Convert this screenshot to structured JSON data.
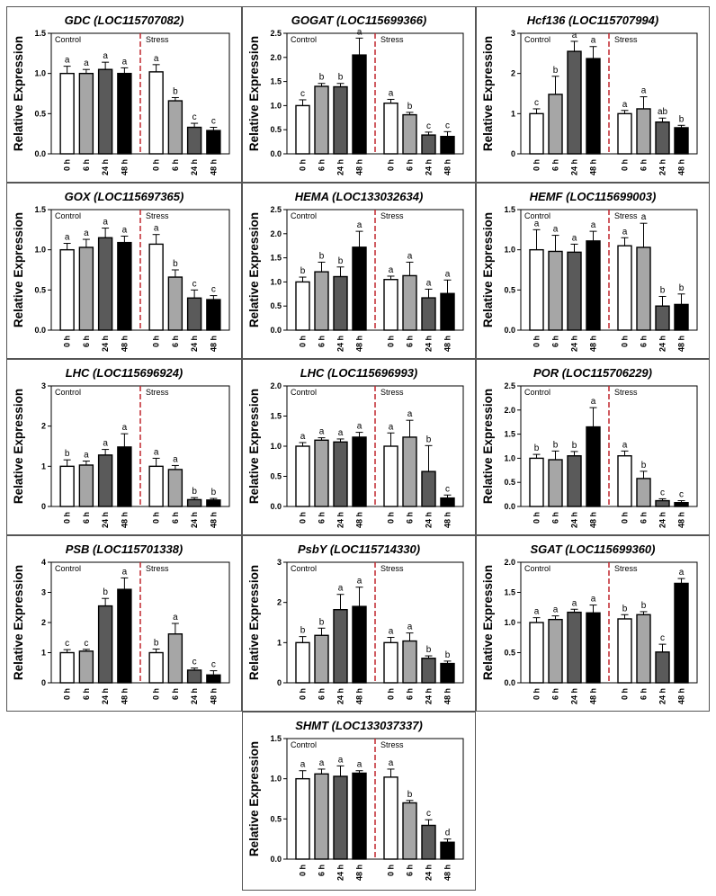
{
  "figure": {
    "ylabel": "Relative Expression",
    "categories": [
      "0 h",
      "6 h",
      "24 h",
      "48 h"
    ],
    "control_label": "Control",
    "stress_label": "Stress",
    "bar_fills": [
      "#ffffff",
      "#a6a6a6",
      "#5a5a5a",
      "#000000"
    ],
    "divider_color": "#c0272d"
  },
  "chart_data": [
    {
      "type": "bar",
      "title": "GDC (LOC115707082)",
      "ylim": [
        0,
        1.5
      ],
      "yticks": [
        "0.0",
        "0.5",
        "1.0",
        "1.5"
      ],
      "series": [
        {
          "name": "Control",
          "values": [
            1.0,
            1.0,
            1.05,
            1.0
          ],
          "errors": [
            0.09,
            0.05,
            0.09,
            0.07
          ],
          "letters": [
            "a",
            "a",
            "a",
            "a"
          ]
        },
        {
          "name": "Stress",
          "values": [
            1.02,
            0.66,
            0.33,
            0.29
          ],
          "errors": [
            0.09,
            0.04,
            0.05,
            0.04
          ],
          "letters": [
            "a",
            "b",
            "c",
            "c"
          ]
        }
      ]
    },
    {
      "type": "bar",
      "title": "GOGAT (LOC115699366)",
      "ylim": [
        0,
        2.5
      ],
      "yticks": [
        "0.0",
        "0.5",
        "1.0",
        "1.5",
        "2.0",
        "2.5"
      ],
      "series": [
        {
          "name": "Control",
          "values": [
            1.0,
            1.4,
            1.39,
            2.05
          ],
          "errors": [
            0.12,
            0.06,
            0.07,
            0.35
          ],
          "letters": [
            "c",
            "b",
            "b",
            "a"
          ]
        },
        {
          "name": "Stress",
          "values": [
            1.05,
            0.81,
            0.39,
            0.36
          ],
          "errors": [
            0.08,
            0.05,
            0.06,
            0.1
          ],
          "letters": [
            "a",
            "b",
            "c",
            "c"
          ]
        }
      ]
    },
    {
      "type": "bar",
      "title": "Hcf136 (LOC115707994)",
      "ylim": [
        0,
        3
      ],
      "yticks": [
        "0",
        "1",
        "2",
        "3"
      ],
      "series": [
        {
          "name": "Control",
          "values": [
            1.0,
            1.48,
            2.55,
            2.37
          ],
          "errors": [
            0.12,
            0.45,
            0.25,
            0.3
          ],
          "letters": [
            "c",
            "b",
            "a",
            "a"
          ]
        },
        {
          "name": "Stress",
          "values": [
            1.0,
            1.12,
            0.79,
            0.65
          ],
          "errors": [
            0.08,
            0.3,
            0.1,
            0.06
          ],
          "letters": [
            "a",
            "a",
            "ab",
            "b"
          ]
        }
      ]
    },
    {
      "type": "bar",
      "title": "GOX (LOC115697365)",
      "ylim": [
        0,
        1.5
      ],
      "yticks": [
        "0.0",
        "0.5",
        "1.0",
        "1.5"
      ],
      "series": [
        {
          "name": "Control",
          "values": [
            1.0,
            1.03,
            1.15,
            1.09
          ],
          "errors": [
            0.08,
            0.1,
            0.12,
            0.08
          ],
          "letters": [
            "a",
            "a",
            "a",
            "a"
          ]
        },
        {
          "name": "Stress",
          "values": [
            1.07,
            0.66,
            0.4,
            0.38
          ],
          "errors": [
            0.12,
            0.09,
            0.1,
            0.05
          ],
          "letters": [
            "a",
            "b",
            "c",
            "c"
          ]
        }
      ]
    },
    {
      "type": "bar",
      "title": "HEMA (LOC133032634)",
      "ylim": [
        0,
        2.5
      ],
      "yticks": [
        "0.0",
        "0.5",
        "1.0",
        "1.5",
        "2.0",
        "2.5"
      ],
      "series": [
        {
          "name": "Control",
          "values": [
            1.0,
            1.21,
            1.11,
            1.72
          ],
          "errors": [
            0.1,
            0.2,
            0.2,
            0.33
          ],
          "letters": [
            "b",
            "b",
            "b",
            "a"
          ]
        },
        {
          "name": "Stress",
          "values": [
            1.05,
            1.13,
            0.67,
            0.76
          ],
          "errors": [
            0.07,
            0.28,
            0.18,
            0.28
          ],
          "letters": [
            "a",
            "a",
            "a",
            "a"
          ]
        }
      ]
    },
    {
      "type": "bar",
      "title": "HEMF (LOC115699003)",
      "ylim": [
        0,
        1.5
      ],
      "yticks": [
        "0.0",
        "0.5",
        "1.0",
        "1.5"
      ],
      "series": [
        {
          "name": "Control",
          "values": [
            1.0,
            0.98,
            0.97,
            1.11
          ],
          "errors": [
            0.25,
            0.2,
            0.1,
            0.12
          ],
          "letters": [
            "a",
            "a",
            "a",
            "a"
          ]
        },
        {
          "name": "Stress",
          "values": [
            1.05,
            1.03,
            0.3,
            0.32
          ],
          "errors": [
            0.1,
            0.3,
            0.12,
            0.13
          ],
          "letters": [
            "a",
            "a",
            "b",
            "b"
          ]
        }
      ]
    },
    {
      "type": "bar",
      "title": "LHC (LOC115696924)",
      "ylim": [
        0,
        3
      ],
      "yticks": [
        "0",
        "1",
        "2",
        "3"
      ],
      "series": [
        {
          "name": "Control",
          "values": [
            1.0,
            1.03,
            1.28,
            1.48
          ],
          "errors": [
            0.16,
            0.1,
            0.14,
            0.33
          ],
          "letters": [
            "b",
            "a",
            "a",
            "a"
          ]
        },
        {
          "name": "Stress",
          "values": [
            1.0,
            0.92,
            0.17,
            0.16
          ],
          "errors": [
            0.2,
            0.1,
            0.05,
            0.04
          ],
          "letters": [
            "a",
            "a",
            "b",
            "b"
          ]
        }
      ]
    },
    {
      "type": "bar",
      "title": "LHC (LOC115696993)",
      "ylim": [
        0,
        2
      ],
      "yticks": [
        "0.0",
        "0.5",
        "1.0",
        "1.5",
        "2.0"
      ],
      "series": [
        {
          "name": "Control",
          "values": [
            1.0,
            1.1,
            1.07,
            1.15
          ],
          "errors": [
            0.06,
            0.04,
            0.05,
            0.08
          ],
          "letters": [
            "a",
            "a",
            "a",
            "a"
          ]
        },
        {
          "name": "Stress",
          "values": [
            1.0,
            1.15,
            0.58,
            0.14
          ],
          "errors": [
            0.22,
            0.28,
            0.43,
            0.05
          ],
          "letters": [
            "a",
            "a",
            "b",
            "c"
          ]
        }
      ]
    },
    {
      "type": "bar",
      "title": "POR (LOC115706229)",
      "ylim": [
        0,
        2.5
      ],
      "yticks": [
        "0.0",
        "0.5",
        "1.0",
        "1.5",
        "2.0",
        "2.5"
      ],
      "series": [
        {
          "name": "Control",
          "values": [
            1.0,
            0.97,
            1.05,
            1.65
          ],
          "errors": [
            0.08,
            0.18,
            0.09,
            0.4
          ],
          "letters": [
            "b",
            "b",
            "b",
            "a"
          ]
        },
        {
          "name": "Stress",
          "values": [
            1.05,
            0.58,
            0.12,
            0.08
          ],
          "errors": [
            0.1,
            0.15,
            0.04,
            0.04
          ],
          "letters": [
            "a",
            "b",
            "c",
            "c"
          ]
        }
      ]
    },
    {
      "type": "bar",
      "title": "PSB (LOC115701338)",
      "ylim": [
        0,
        4
      ],
      "yticks": [
        "0",
        "1",
        "2",
        "3",
        "4"
      ],
      "series": [
        {
          "name": "Control",
          "values": [
            1.0,
            1.05,
            2.55,
            3.1
          ],
          "errors": [
            0.1,
            0.06,
            0.25,
            0.38
          ],
          "letters": [
            "c",
            "c",
            "b",
            "a"
          ]
        },
        {
          "name": "Stress",
          "values": [
            1.0,
            1.62,
            0.42,
            0.26
          ],
          "errors": [
            0.12,
            0.35,
            0.07,
            0.14
          ],
          "letters": [
            "b",
            "a",
            "c",
            "c"
          ]
        }
      ]
    },
    {
      "type": "bar",
      "title": "PsbY (LOC115714330)",
      "ylim": [
        0,
        3
      ],
      "yticks": [
        "0",
        "1",
        "2",
        "3"
      ],
      "series": [
        {
          "name": "Control",
          "values": [
            1.0,
            1.18,
            1.82,
            1.9
          ],
          "errors": [
            0.15,
            0.18,
            0.38,
            0.48
          ],
          "letters": [
            "b",
            "b",
            "a",
            "a"
          ]
        },
        {
          "name": "Stress",
          "values": [
            1.0,
            1.04,
            0.61,
            0.48
          ],
          "errors": [
            0.13,
            0.2,
            0.06,
            0.06
          ],
          "letters": [
            "a",
            "a",
            "b",
            "b"
          ]
        }
      ]
    },
    {
      "type": "bar",
      "title": "SGAT (LOC115699360)",
      "ylim": [
        0,
        2
      ],
      "yticks": [
        "0.0",
        "0.5",
        "1.0",
        "1.5",
        "2.0"
      ],
      "series": [
        {
          "name": "Control",
          "values": [
            1.0,
            1.05,
            1.17,
            1.16
          ],
          "errors": [
            0.08,
            0.06,
            0.05,
            0.13
          ],
          "letters": [
            "a",
            "a",
            "a",
            "a"
          ]
        },
        {
          "name": "Stress",
          "values": [
            1.06,
            1.13,
            0.51,
            1.65
          ],
          "errors": [
            0.07,
            0.05,
            0.13,
            0.08
          ],
          "letters": [
            "b",
            "b",
            "c",
            "a"
          ]
        }
      ]
    },
    {
      "type": "bar",
      "title": "SHMT (LOC133037337)",
      "ylim": [
        0,
        1.5
      ],
      "yticks": [
        "0.0",
        "0.5",
        "1.0",
        "1.5"
      ],
      "series": [
        {
          "name": "Control",
          "values": [
            1.0,
            1.06,
            1.03,
            1.07
          ],
          "errors": [
            0.1,
            0.06,
            0.13,
            0.03
          ],
          "letters": [
            "a",
            "a",
            "a",
            "a"
          ]
        },
        {
          "name": "Stress",
          "values": [
            1.02,
            0.7,
            0.42,
            0.21
          ],
          "errors": [
            0.1,
            0.03,
            0.07,
            0.04
          ],
          "letters": [
            "a",
            "b",
            "c",
            "d"
          ]
        }
      ]
    }
  ]
}
